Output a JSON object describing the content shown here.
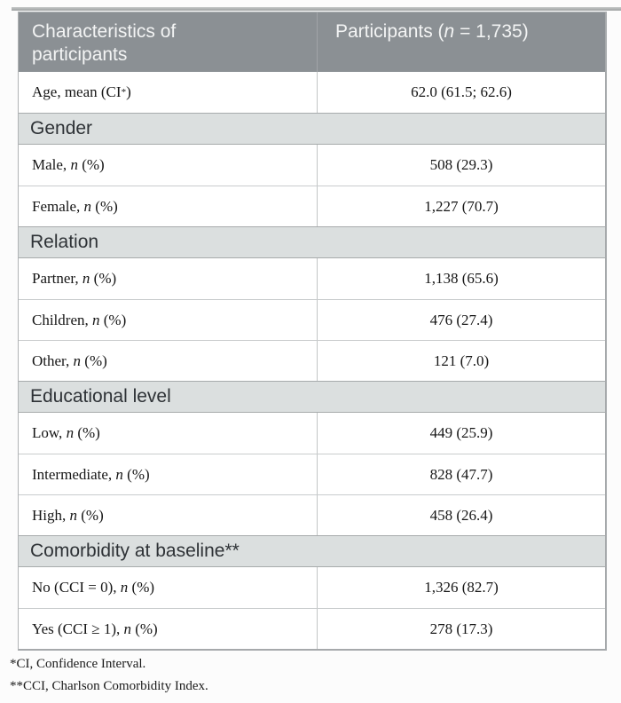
{
  "colors": {
    "header_bg": "#8b9094",
    "header_text": "#f3f4f4",
    "section_bg": "#dbdfdf"
  },
  "table": {
    "header": {
      "col1": "Characteristics of participants",
      "col2_pre": "Participants (",
      "col2_italic": "n",
      "col2_post": " = 1,735)"
    },
    "rows": [
      {
        "type": "data",
        "label_pre": "Age, mean (CI",
        "label_sup": "*",
        "label_post": ")",
        "value": "62.0 (61.5; 62.6)"
      },
      {
        "type": "section",
        "label": "Gender"
      },
      {
        "type": "data",
        "label_pre": "Male, ",
        "label_it": "n",
        "label_post": " (%)",
        "value": "508 (29.3)"
      },
      {
        "type": "data",
        "label_pre": "Female, ",
        "label_it": "n",
        "label_post": " (%)",
        "value": "1,227 (70.7)"
      },
      {
        "type": "section",
        "label": "Relation"
      },
      {
        "type": "data",
        "label_pre": "Partner, ",
        "label_it": "n",
        "label_post": " (%)",
        "value": "1,138 (65.6)"
      },
      {
        "type": "data",
        "label_pre": "Children, ",
        "label_it": "n",
        "label_post": " (%)",
        "value": "476 (27.4)"
      },
      {
        "type": "data",
        "label_pre": "Other, ",
        "label_it": "n",
        "label_post": " (%)",
        "value": "121 (7.0)"
      },
      {
        "type": "section",
        "label": "Educational level"
      },
      {
        "type": "data",
        "label_pre": "Low, ",
        "label_it": "n",
        "label_post": " (%)",
        "value": "449 (25.9)"
      },
      {
        "type": "data",
        "label_pre": "Intermediate, ",
        "label_it": "n",
        "label_post": " (%)",
        "value": "828 (47.7)"
      },
      {
        "type": "data",
        "label_pre": "High, ",
        "label_it": "n",
        "label_post": " (%)",
        "value": "458 (26.4)"
      },
      {
        "type": "section",
        "label": "Comorbidity at baseline**"
      },
      {
        "type": "data",
        "label_pre": "No (CCI = 0), ",
        "label_it": "n",
        "label_post": " (%)",
        "value": "1,326 (82.7)"
      },
      {
        "type": "data",
        "label_pre": "Yes (CCI ≥ 1), ",
        "label_it": "n",
        "label_post": " (%)",
        "value": "278 (17.3)"
      }
    ],
    "footnotes": [
      "*CI, Confidence Interval.",
      "**CCI, Charlson Comorbidity Index."
    ]
  }
}
